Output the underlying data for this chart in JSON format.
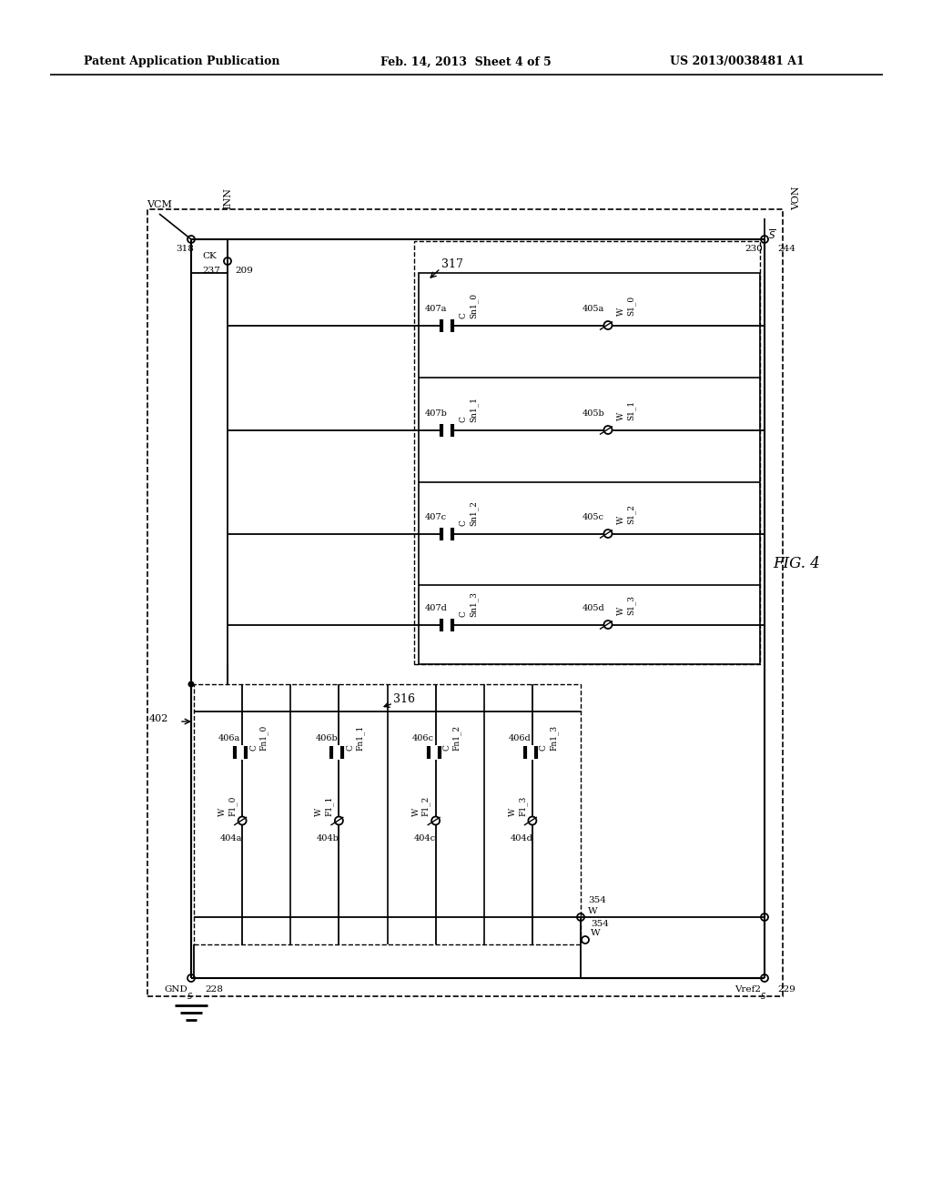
{
  "bg_color": "#ffffff",
  "header_left": "Patent Application Publication",
  "header_center": "Feb. 14, 2013  Sheet 4 of 5",
  "header_right": "US 2013/0038481 A1",
  "fig_label": "FIG. 4",
  "fn_caps": [
    "C_{Fn1_0}",
    "C_{Fn1_1}",
    "C_{Fn1_2}",
    "C_{Fn1_3}"
  ],
  "fn_cap_nums": [
    "406a",
    "406b",
    "406c",
    "406d"
  ],
  "wf_sws": [
    "W_{F1_0}",
    "W_{F1_1}",
    "W_{F1_2}",
    "W_{F1_3}"
  ],
  "wf_sw_nums": [
    "404a",
    "404b",
    "404c",
    "404d"
  ],
  "sn_caps": [
    "C_{Sn1_0}",
    "C_{Sn1_1}",
    "C_{Sn1_2}",
    "C_{Sn1_3}"
  ],
  "sn_cap_nums": [
    "407a",
    "407b",
    "407c",
    "407d"
  ],
  "ws_sws": [
    "W_{S1_0}",
    "W_{S1_1}",
    "W_{S1_2}",
    "W_{S1_3}"
  ],
  "ws_sw_nums": [
    "405a",
    "405b",
    "405c",
    "405d"
  ]
}
